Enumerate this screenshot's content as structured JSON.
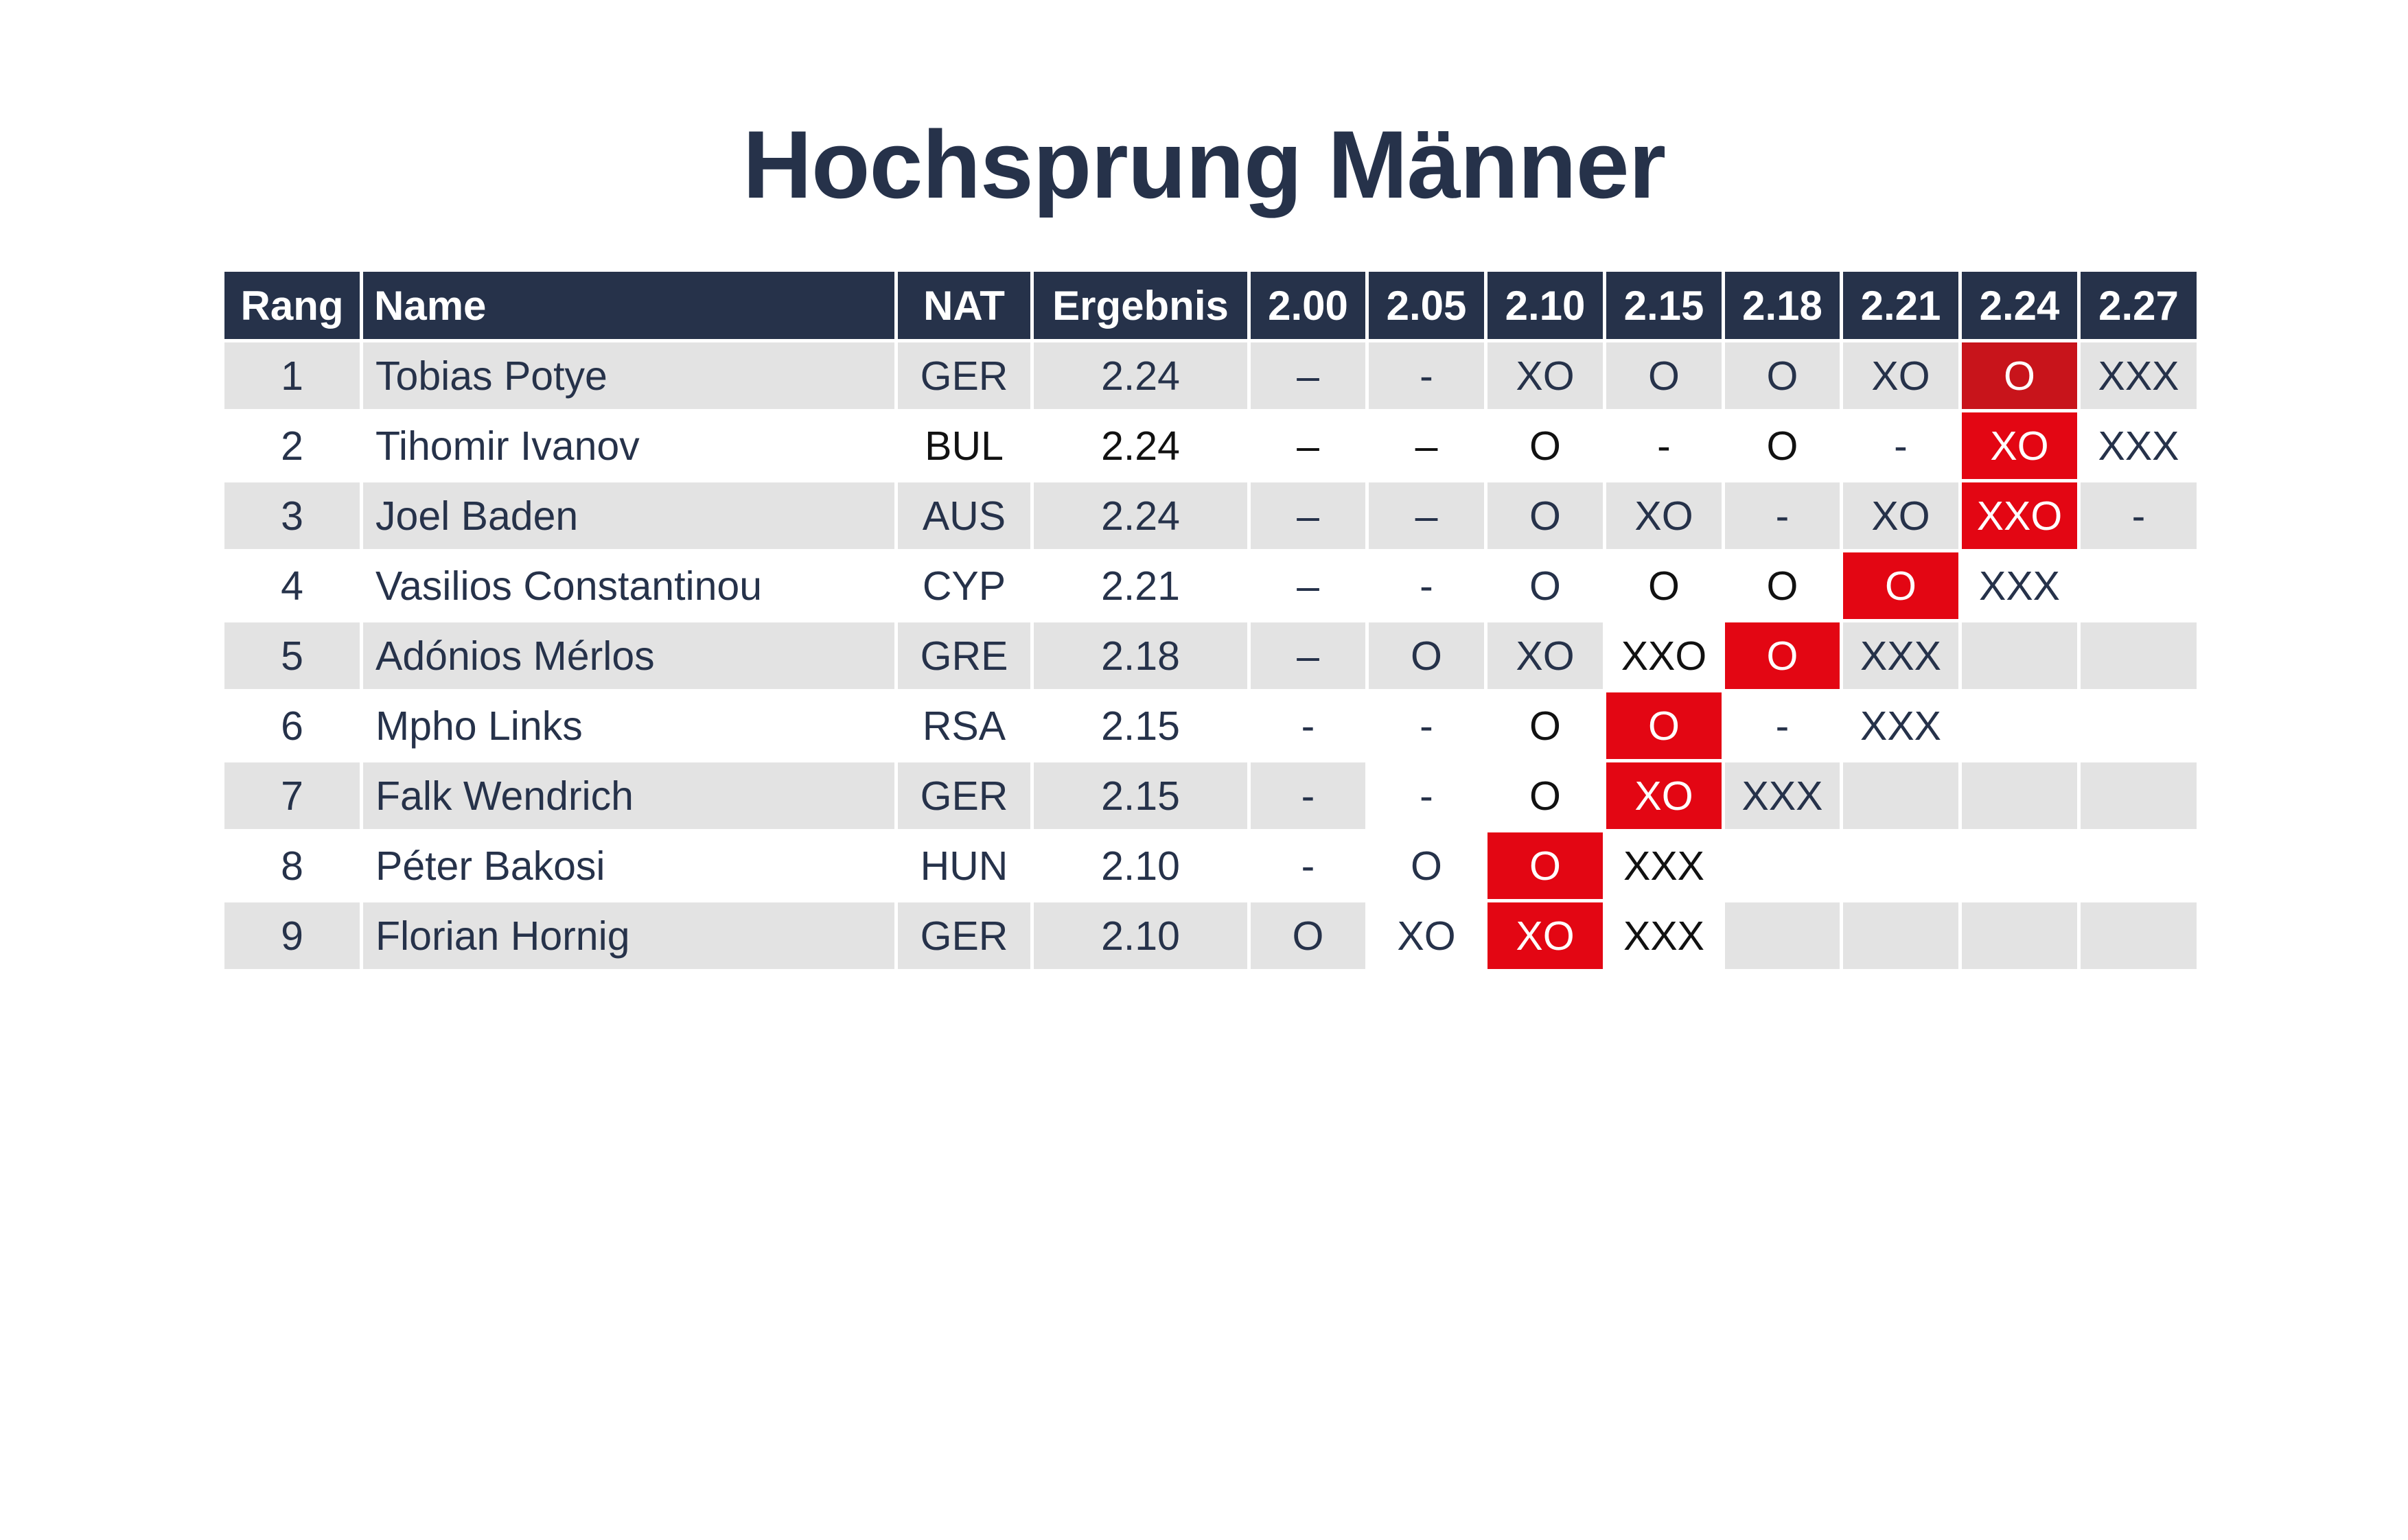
{
  "title": "Hochsprung Männer",
  "colors": {
    "header_bg": "#26324a",
    "row_shade": "#e3e3e3",
    "highlight_red": "#e30613",
    "highlight_darkred": "#c8141b",
    "text": "#26324a"
  },
  "columns": [
    "Rang",
    "Name",
    "NAT",
    "Ergebnis",
    "2.00",
    "2.05",
    "2.10",
    "2.15",
    "2.18",
    "2.21",
    "2.24",
    "2.27"
  ],
  "rows": [
    {
      "rank": "1",
      "name": "Tobias Potye",
      "nat": "GER",
      "result": "2.24",
      "attempts": [
        "–",
        "-",
        "XO",
        "O",
        "O",
        "XO",
        "O",
        "XXX"
      ]
    },
    {
      "rank": "2",
      "name": "Tihomir Ivanov",
      "nat": "BUL",
      "result": "2.24",
      "attempts": [
        "–",
        "–",
        "O",
        "-",
        "O",
        "-",
        "XO",
        "XXX"
      ]
    },
    {
      "rank": "3",
      "name": "Joel Baden",
      "nat": "AUS",
      "result": "2.24",
      "attempts": [
        "–",
        "–",
        "O",
        "XO",
        "-",
        "XO",
        "XXO",
        "-"
      ]
    },
    {
      "rank": "4",
      "name": "Vasilios Constantinou",
      "nat": "CYP",
      "result": "2.21",
      "attempts": [
        "–",
        "-",
        "O",
        "O",
        "O",
        "O",
        "XXX",
        ""
      ]
    },
    {
      "rank": "5",
      "name": "Adónios Mérlos",
      "nat": "GRE",
      "result": "2.18",
      "attempts": [
        "–",
        "O",
        "XO",
        "XXO",
        "O",
        "XXX",
        "",
        ""
      ]
    },
    {
      "rank": "6",
      "name": "Mpho Links",
      "nat": "RSA",
      "result": "2.15",
      "attempts": [
        "-",
        "-",
        "O",
        "O",
        "-",
        "XXX",
        "",
        ""
      ]
    },
    {
      "rank": "7",
      "name": "Falk Wendrich",
      "nat": "GER",
      "result": "2.15",
      "attempts": [
        "-",
        "-",
        "O",
        "XO",
        "XXX",
        "",
        "",
        ""
      ]
    },
    {
      "rank": "8",
      "name": "Péter Bakosi",
      "nat": "HUN",
      "result": "2.10",
      "attempts": [
        "-",
        "O",
        "O",
        "XXX",
        "",
        "",
        "",
        ""
      ]
    },
    {
      "rank": "9",
      "name": "Florian Hornig",
      "nat": "GER",
      "result": "2.10",
      "attempts": [
        "O",
        "XO",
        "XO",
        "XXX",
        "",
        "",
        "",
        ""
      ]
    }
  ]
}
